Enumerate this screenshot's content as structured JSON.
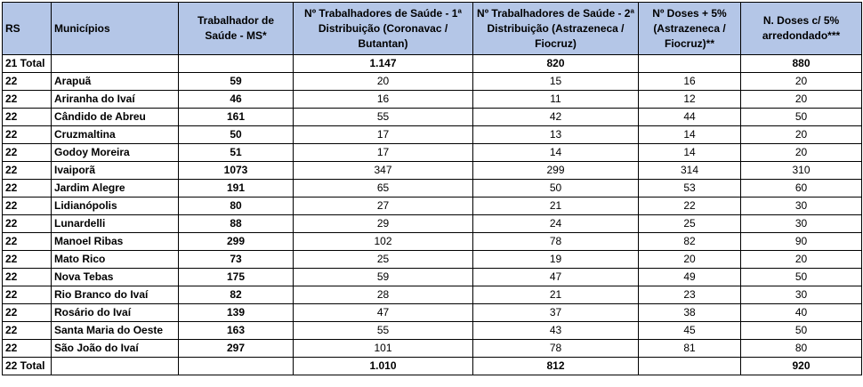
{
  "headers": {
    "rs": "RS",
    "municipios": "Municípios",
    "trabalhador": "Trabalhador de Saúde - MS*",
    "dist1": "Nº Trabalhadores de Saúde - 1ª Distribuição (Coronavac / Butantan)",
    "dist2": "Nº Trabalhadores de Saúde - 2ª Distribuição (Astrazeneca / Fiocruz)",
    "doses5": "Nº Doses + 5% (Astrazeneca / Fiocruz)**",
    "arred": "N. Doses c/ 5% arredondado***"
  },
  "total_top": {
    "label": "21 Total",
    "trabalhador": "",
    "dist1": "1.147",
    "dist2": "820",
    "doses5": "",
    "arred": "880"
  },
  "rows": [
    {
      "rs": "22",
      "municipio": "Arapuã",
      "trabalhador": "59",
      "dist1": "20",
      "dist2": "15",
      "doses5": "16",
      "arred": "20"
    },
    {
      "rs": "22",
      "municipio": "Ariranha do Ivaí",
      "trabalhador": "46",
      "dist1": "16",
      "dist2": "11",
      "doses5": "12",
      "arred": "20"
    },
    {
      "rs": "22",
      "municipio": "Cândido de Abreu",
      "trabalhador": "161",
      "dist1": "55",
      "dist2": "42",
      "doses5": "44",
      "arred": "50"
    },
    {
      "rs": "22",
      "municipio": "Cruzmaltina",
      "trabalhador": "50",
      "dist1": "17",
      "dist2": "13",
      "doses5": "14",
      "arred": "20"
    },
    {
      "rs": "22",
      "municipio": "Godoy Moreira",
      "trabalhador": "51",
      "dist1": "17",
      "dist2": "14",
      "doses5": "14",
      "arred": "20"
    },
    {
      "rs": "22",
      "municipio": "Ivaiporã",
      "trabalhador": "1073",
      "dist1": "347",
      "dist2": "299",
      "doses5": "314",
      "arred": "310"
    },
    {
      "rs": "22",
      "municipio": "Jardim Alegre",
      "trabalhador": "191",
      "dist1": "65",
      "dist2": "50",
      "doses5": "53",
      "arred": "60"
    },
    {
      "rs": "22",
      "municipio": "Lidianópolis",
      "trabalhador": "80",
      "dist1": "27",
      "dist2": "21",
      "doses5": "22",
      "arred": "30"
    },
    {
      "rs": "22",
      "municipio": "Lunardelli",
      "trabalhador": "88",
      "dist1": "29",
      "dist2": "24",
      "doses5": "25",
      "arred": "30"
    },
    {
      "rs": "22",
      "municipio": "Manoel Ribas",
      "trabalhador": "299",
      "dist1": "102",
      "dist2": "78",
      "doses5": "82",
      "arred": "90"
    },
    {
      "rs": "22",
      "municipio": "Mato Rico",
      "trabalhador": "73",
      "dist1": "25",
      "dist2": "19",
      "doses5": "20",
      "arred": "20"
    },
    {
      "rs": "22",
      "municipio": "Nova Tebas",
      "trabalhador": "175",
      "dist1": "59",
      "dist2": "47",
      "doses5": "49",
      "arred": "50"
    },
    {
      "rs": "22",
      "municipio": "Rio Branco do Ivaí",
      "trabalhador": "82",
      "dist1": "28",
      "dist2": "21",
      "doses5": "23",
      "arred": "30"
    },
    {
      "rs": "22",
      "municipio": "Rosário do Ivaí",
      "trabalhador": "139",
      "dist1": "47",
      "dist2": "37",
      "doses5": "38",
      "arred": "40"
    },
    {
      "rs": "22",
      "municipio": "Santa Maria do Oeste",
      "trabalhador": "163",
      "dist1": "55",
      "dist2": "43",
      "doses5": "45",
      "arred": "50"
    },
    {
      "rs": "22",
      "municipio": "São João do Ivaí",
      "trabalhador": "297",
      "dist1": "101",
      "dist2": "78",
      "doses5": "81",
      "arred": "80"
    }
  ],
  "total_bottom": {
    "label": "22 Total",
    "trabalhador": "",
    "dist1": "1.010",
    "dist2": "812",
    "doses5": "",
    "arred": "920"
  },
  "colors": {
    "header_bg": "#b4c6e7",
    "border": "#000000"
  }
}
